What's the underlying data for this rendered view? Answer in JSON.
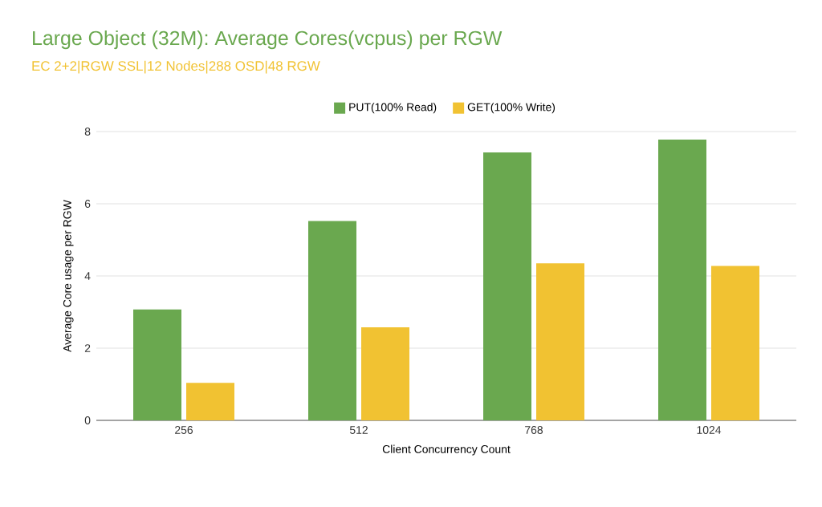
{
  "chart_data": {
    "type": "bar",
    "title": "Large Object (32M): Average Cores(vcpus) per RGW",
    "subtitle": "EC 2+2|RGW SSL|12 Nodes|288 OSD|48 RGW",
    "xlabel": "Client Concurrency Count",
    "ylabel": "Average Core usage per RGW",
    "categories": [
      "256",
      "512",
      "768",
      "1024"
    ],
    "series": [
      {
        "name": "PUT(100% Read)",
        "color": "#6aa84f",
        "values": [
          3.07,
          5.52,
          7.42,
          7.78
        ]
      },
      {
        "name": "GET(100% Write)",
        "color": "#f1c232",
        "values": [
          1.04,
          2.58,
          4.35,
          4.28
        ]
      }
    ],
    "ylim": [
      0,
      8
    ],
    "yticks": [
      0,
      2,
      4,
      6,
      8
    ],
    "grid": "y",
    "legend": "top"
  }
}
